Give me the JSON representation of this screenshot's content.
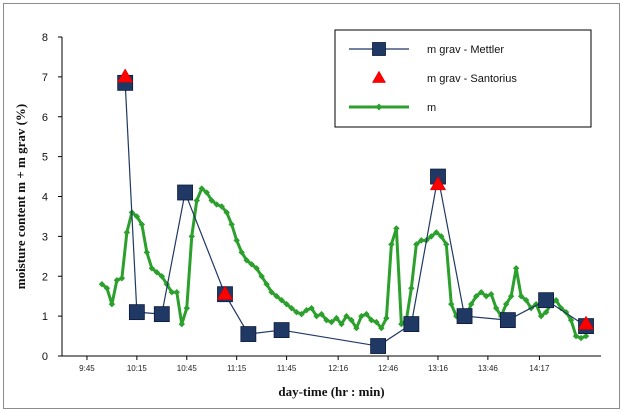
{
  "chart_data": {
    "type": "line",
    "title": "",
    "xlabel": "day-time (hr : min)",
    "ylabel": "moisture content m + m grav (%)",
    "ylim": [
      0,
      8
    ],
    "yticks": [
      0,
      1,
      2,
      3,
      4,
      5,
      6,
      7,
      8
    ],
    "xlim": [
      9.5,
      14.9
    ],
    "xticks": [
      {
        "label": "9:45",
        "value": 9.75
      },
      {
        "label": "10:15",
        "value": 10.25
      },
      {
        "label": "10:45",
        "value": 10.75
      },
      {
        "label": "11:15",
        "value": 11.25
      },
      {
        "label": "11:45",
        "value": 11.75
      },
      {
        "label": "12:16",
        "value": 12.2667
      },
      {
        "label": "12:46",
        "value": 12.7667
      },
      {
        "label": "13:16",
        "value": 13.2667
      },
      {
        "label": "13:46",
        "value": 13.7667
      },
      {
        "label": "14:17",
        "value": 14.2833
      }
    ],
    "grid": false,
    "legend_position": "top-right",
    "series": [
      {
        "name": "m grav - Mettler",
        "color": "#1f3864",
        "line_color": "#1f3864",
        "marker": "square",
        "x": [
          10.133,
          10.25,
          10.5,
          10.733,
          11.133,
          11.367,
          11.7,
          12.667,
          13.0,
          13.267,
          13.533,
          13.967,
          14.35,
          14.75
        ],
        "y": [
          6.85,
          1.1,
          1.05,
          4.1,
          1.55,
          0.55,
          0.65,
          0.25,
          0.8,
          4.5,
          1.0,
          0.9,
          1.4,
          0.75
        ]
      },
      {
        "name": "m grav - Santorius",
        "color": "#ff0000",
        "marker": "triangle",
        "x": [
          10.133,
          11.133,
          13.267,
          14.75
        ],
        "y": [
          7.0,
          1.55,
          4.3,
          0.8
        ]
      },
      {
        "name": "m",
        "color": "#2ca02c",
        "marker": "diamond",
        "x": [
          9.9,
          9.95,
          10.0,
          10.05,
          10.1,
          10.15,
          10.2,
          10.25,
          10.3,
          10.35,
          10.4,
          10.45,
          10.5,
          10.55,
          10.6,
          10.65,
          10.7,
          10.75,
          10.8,
          10.85,
          10.9,
          10.95,
          11.0,
          11.05,
          11.1,
          11.15,
          11.2,
          11.25,
          11.3,
          11.35,
          11.4,
          11.45,
          11.5,
          11.55,
          11.6,
          11.65,
          11.7,
          11.75,
          11.8,
          11.85,
          11.9,
          11.95,
          12.0,
          12.05,
          12.1,
          12.15,
          12.2,
          12.25,
          12.3,
          12.35,
          12.4,
          12.45,
          12.5,
          12.55,
          12.6,
          12.65,
          12.7,
          12.75,
          12.8,
          12.85,
          12.9,
          12.95,
          13.0,
          13.05,
          13.1,
          13.15,
          13.2,
          13.25,
          13.3,
          13.35,
          13.4,
          13.45,
          13.5,
          13.55,
          13.6,
          13.65,
          13.7,
          13.75,
          13.8,
          13.85,
          13.9,
          13.95,
          14.0,
          14.05,
          14.1,
          14.15,
          14.2,
          14.25,
          14.3,
          14.35,
          14.4,
          14.45,
          14.5,
          14.55,
          14.6,
          14.65,
          14.7,
          14.75
        ],
        "y": [
          1.8,
          1.7,
          1.3,
          1.9,
          1.95,
          3.1,
          3.6,
          3.5,
          3.3,
          2.6,
          2.2,
          2.1,
          2.0,
          1.8,
          1.6,
          1.6,
          0.8,
          1.2,
          3.0,
          3.9,
          4.2,
          4.1,
          3.9,
          3.8,
          3.75,
          3.6,
          3.3,
          2.9,
          2.6,
          2.4,
          2.3,
          2.2,
          2.0,
          1.8,
          1.6,
          1.5,
          1.4,
          1.3,
          1.2,
          1.1,
          1.05,
          1.15,
          1.2,
          1.0,
          1.05,
          0.9,
          0.85,
          0.95,
          0.8,
          1.0,
          0.9,
          0.7,
          1.0,
          1.05,
          0.9,
          0.85,
          0.7,
          0.95,
          2.8,
          3.2,
          0.8,
          0.9,
          1.7,
          2.8,
          2.9,
          2.9,
          3.0,
          3.1,
          3.0,
          2.8,
          1.3,
          1.0,
          1.1,
          1.0,
          1.3,
          1.5,
          1.6,
          1.5,
          1.55,
          1.2,
          1.0,
          1.3,
          1.5,
          2.2,
          1.5,
          1.4,
          1.2,
          1.3,
          1.0,
          1.1,
          1.3,
          1.4,
          1.2,
          1.1,
          0.9,
          0.5,
          0.45,
          0.5
        ]
      }
    ]
  }
}
